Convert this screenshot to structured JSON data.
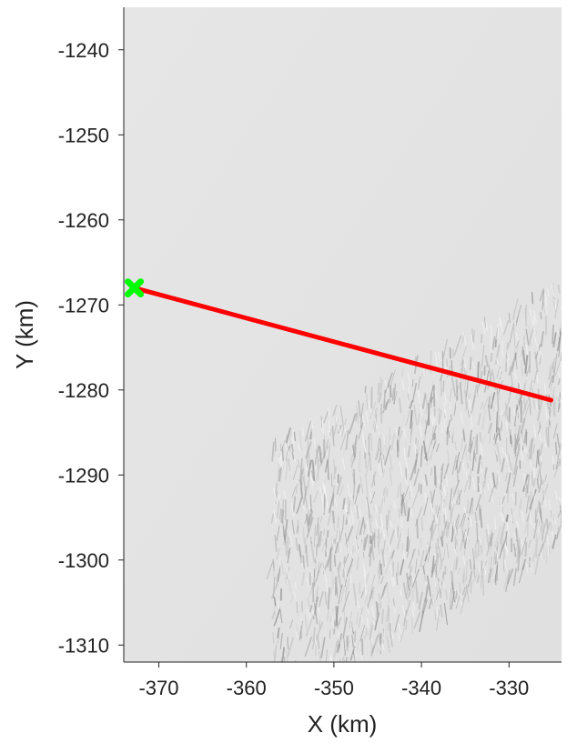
{
  "chart_data": {
    "type": "map",
    "title": "",
    "xlabel": "X (km)",
    "ylabel": "Y (km)",
    "xlim": [
      -374,
      -324
    ],
    "ylim": [
      -1312,
      -1235
    ],
    "xticks": [
      -370,
      -360,
      -350,
      -340,
      -330
    ],
    "yticks": [
      -1240,
      -1250,
      -1260,
      -1270,
      -1280,
      -1290,
      -1300,
      -1310
    ],
    "xtick_labels": [
      "-370",
      "-360",
      "-350",
      "-340",
      "-330"
    ],
    "ytick_labels": [
      "-1240",
      "-1250",
      "-1260",
      "-1270",
      "-1280",
      "-1290",
      "-1300",
      "-1310"
    ],
    "grid": false,
    "background": "grayscale shaded-relief terrain; smooth in upper-left, crevassed texture toward lower-right",
    "series": [
      {
        "kind": "line",
        "color": "#ff0000",
        "x": [
          -372.8,
          -325.2
        ],
        "y": [
          -1268.0,
          -1281.2
        ]
      },
      {
        "kind": "marker",
        "shape": "X",
        "color": "#00ff00",
        "x": [
          -372.8
        ],
        "y": [
          -1268.0
        ]
      }
    ]
  }
}
